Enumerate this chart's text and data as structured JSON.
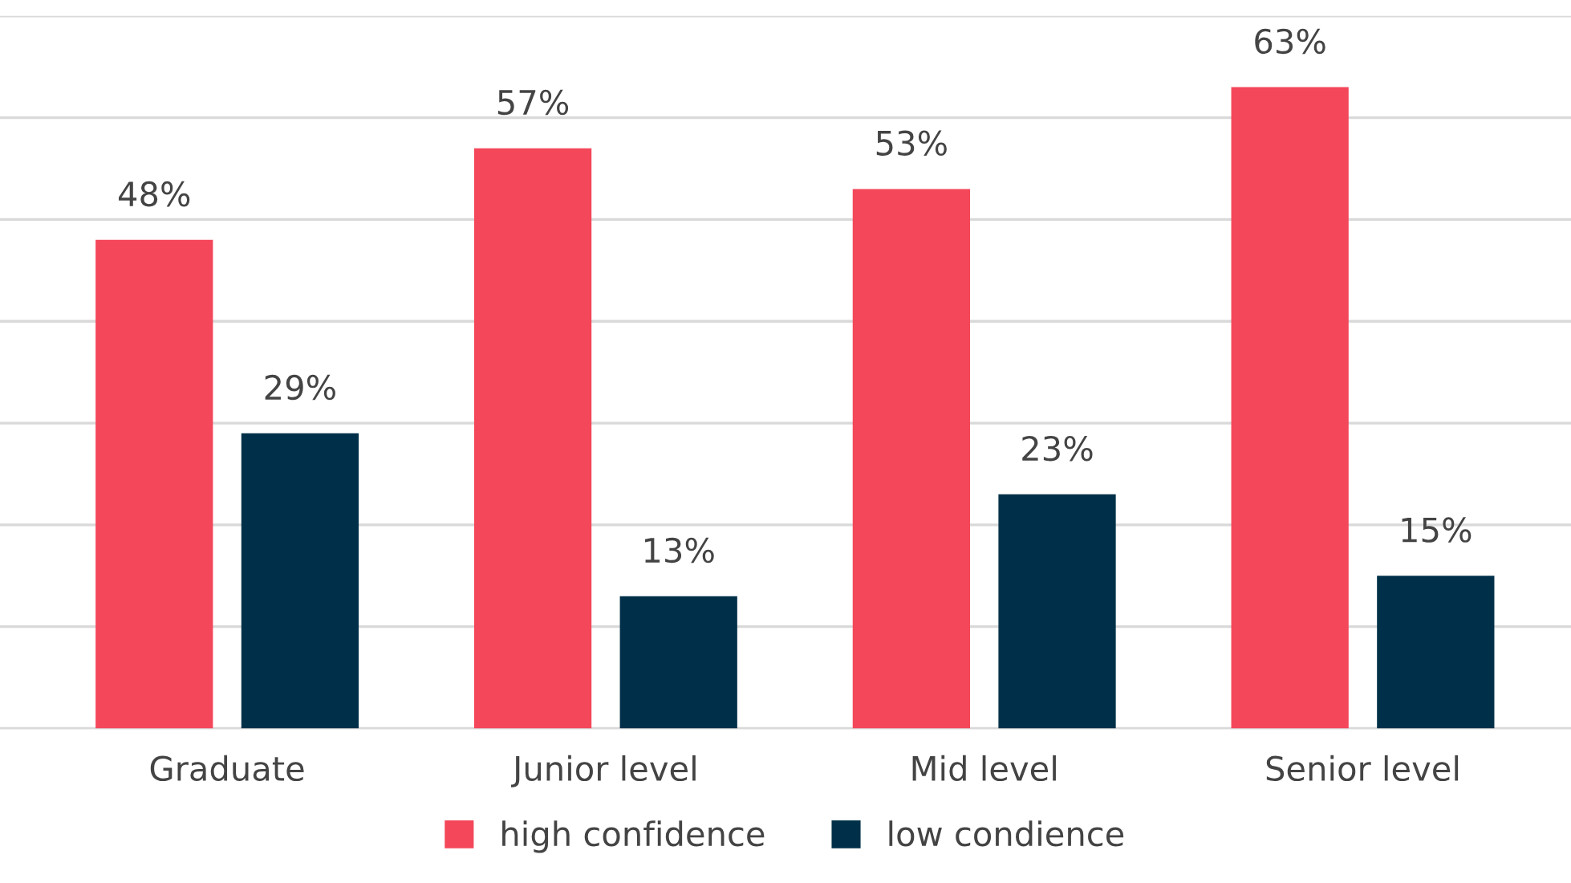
{
  "chart_data": {
    "type": "bar",
    "categories": [
      "Graduate",
      "Junior level",
      "Mid level",
      "Senior level"
    ],
    "series": [
      {
        "name": "high confidence",
        "color": "#f4475a",
        "values": [
          48,
          57,
          53,
          63
        ],
        "value_labels": [
          "48%",
          "57%",
          "53%",
          "63%"
        ]
      },
      {
        "name": "low condience",
        "color": "#003049",
        "values": [
          29,
          13,
          23,
          15
        ],
        "value_labels": [
          "29%",
          "13%",
          "23%",
          "15%"
        ]
      }
    ],
    "ylim": [
      0,
      70
    ],
    "yticks": [
      {
        "value": 0,
        "label": null
      },
      {
        "value": 10,
        "label": null
      },
      {
        "value": 20,
        "label": null
      },
      {
        "value": 30,
        "label": null
      },
      {
        "value": 40,
        "label": null
      },
      {
        "value": 50,
        "label": null
      },
      {
        "value": 60,
        "label": null
      },
      {
        "value": 70,
        "label": null
      }
    ],
    "tick_labels": "x",
    "grid": "y",
    "legend": "bottom"
  }
}
